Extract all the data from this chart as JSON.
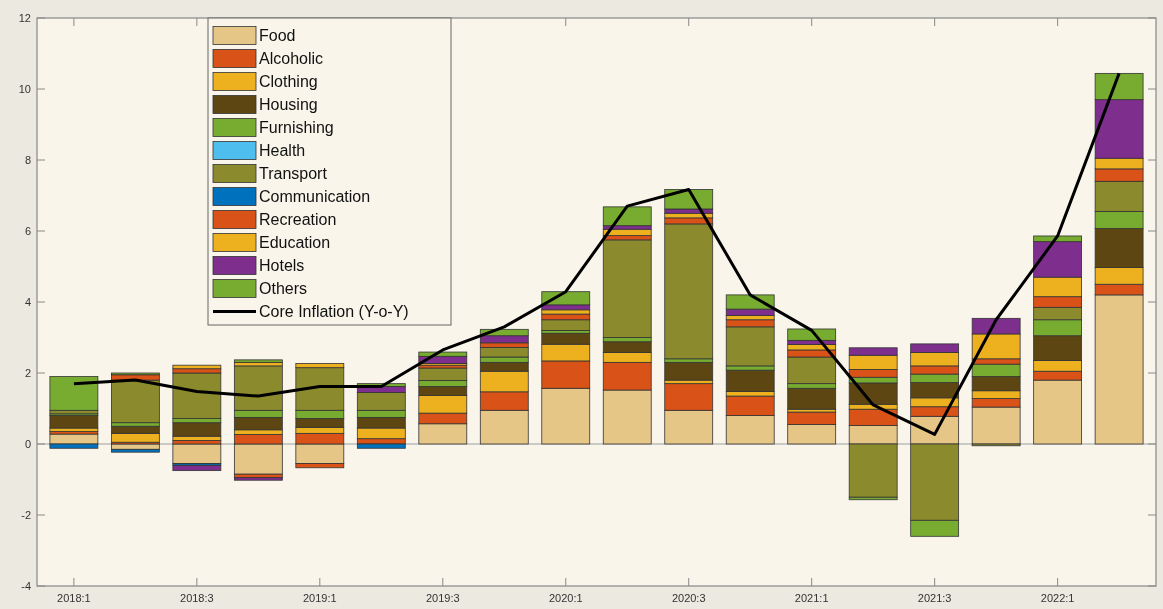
{
  "chart_data": {
    "type": "bar",
    "stacked": true,
    "categories": [
      "2018:1",
      null,
      "2018:3",
      null,
      "2019:1",
      null,
      "2019:3",
      null,
      "2020:1",
      null,
      "2020:3",
      null,
      "2021:1",
      null,
      "2021:3",
      null,
      "2022:1",
      null
    ],
    "series": [
      {
        "name": "Food",
        "color": "#e5c687",
        "values": [
          0.28,
          -0.15,
          -0.55,
          -0.85,
          -0.55,
          null,
          0.57,
          0.95,
          1.57,
          1.52,
          0.95,
          0.8,
          0.55,
          0.52,
          0.78,
          1.04,
          1.8,
          4.2
        ]
      },
      {
        "name": "Alcoholic",
        "color": "#d95319",
        "values": [
          0.07,
          0.05,
          0.1,
          0.27,
          0.3,
          0.15,
          0.3,
          0.52,
          0.77,
          0.78,
          0.75,
          0.55,
          0.35,
          0.46,
          0.27,
          0.24,
          0.25,
          0.3
        ]
      },
      {
        "name": "Clothing",
        "color": "#edb120",
        "values": [
          0.1,
          0.25,
          0.12,
          0.13,
          0.17,
          0.3,
          0.5,
          0.58,
          0.47,
          0.28,
          0.1,
          0.13,
          0.08,
          0.14,
          0.25,
          0.22,
          0.3,
          0.47
        ]
      },
      {
        "name": "Housing",
        "color": "#5e4613",
        "values": [
          0.35,
          0.2,
          0.38,
          0.35,
          0.25,
          0.3,
          0.25,
          0.25,
          0.31,
          0.3,
          0.5,
          0.6,
          0.59,
          0.6,
          0.43,
          0.4,
          0.7,
          1.1
        ]
      },
      {
        "name": "Furnishing",
        "color": "#77ac30",
        "values": [
          0.05,
          0.1,
          0.12,
          0.2,
          0.23,
          0.2,
          0.17,
          0.15,
          0.08,
          0.12,
          0.1,
          0.12,
          0.13,
          0.16,
          0.24,
          0.35,
          0.45,
          0.48
        ]
      },
      {
        "name": "Health",
        "color": "#4dbeee",
        "values": [
          0,
          0,
          0,
          0,
          0,
          0,
          0,
          0,
          0,
          0,
          0,
          0,
          0,
          0,
          0,
          0,
          0,
          0
        ]
      },
      {
        "name": "Transport",
        "color": "#8b8b2e",
        "values": [
          0.1,
          1.2,
          1.28,
          1.25,
          1.2,
          0.5,
          0.35,
          0.27,
          0.3,
          2.75,
          3.8,
          1.1,
          0.75,
          -1.5,
          -2.15,
          -0.05,
          0.35,
          0.85
        ]
      },
      {
        "name": "Communication",
        "color": "#0072bd",
        "values": [
          -0.12,
          -0.08,
          -0.05,
          0,
          0,
          -0.12,
          0,
          0,
          0,
          0,
          0,
          0,
          0,
          0,
          0,
          0,
          0,
          0
        ]
      },
      {
        "name": "Recreation",
        "color": "#d95319",
        "values": [
          0,
          0.15,
          0.12,
          -0.1,
          -0.12,
          0,
          0.08,
          0.13,
          0.16,
          0.12,
          0.17,
          0.2,
          0.2,
          0.22,
          0.23,
          0.15,
          0.3,
          0.35
        ]
      },
      {
        "name": "Education",
        "color": "#edb120",
        "values": [
          0,
          null,
          0.1,
          0.1,
          0.12,
          0,
          0.05,
          null,
          0.12,
          0.18,
          0.13,
          0.12,
          0.15,
          0.4,
          0.38,
          0.7,
          0.55,
          0.3
        ]
      },
      {
        "name": "Hotels",
        "color": "#7e2f8e",
        "values": [
          0,
          0,
          -0.15,
          -0.07,
          0,
          0.17,
          0.2,
          0.2,
          0.14,
          0.1,
          0.12,
          0.18,
          0.12,
          0.21,
          0.24,
          0.44,
          1.0,
          1.65
        ]
      },
      {
        "name": "Others",
        "color": "#77ac30",
        "values": [
          0.95,
          0.05,
          0,
          0.07,
          0,
          0.08,
          0.12,
          0.18,
          0.37,
          0.53,
          0.55,
          0.4,
          0.32,
          -0.07,
          -0.45,
          0,
          0.16,
          0.74
        ]
      },
      {
        "name": "Core Inflation (Y-o-Y)",
        "type": "line",
        "color": "#000000",
        "values": [
          1.7,
          1.8,
          1.48,
          1.35,
          1.62,
          1.62,
          2.65,
          3.3,
          4.29,
          6.7,
          7.17,
          4.2,
          3.2,
          1.1,
          0.27,
          3.5,
          5.86,
          10.44
        ]
      }
    ],
    "ylim": [
      -4,
      12
    ],
    "yticks": [
      -4,
      -2,
      0,
      2,
      4,
      6,
      8,
      10,
      12
    ],
    "grid": false,
    "ref_lines": [
      {
        "axis": "y",
        "value": 0,
        "color": "#bbbbbb"
      }
    ],
    "legend": "top left",
    "line_style": "solid"
  }
}
